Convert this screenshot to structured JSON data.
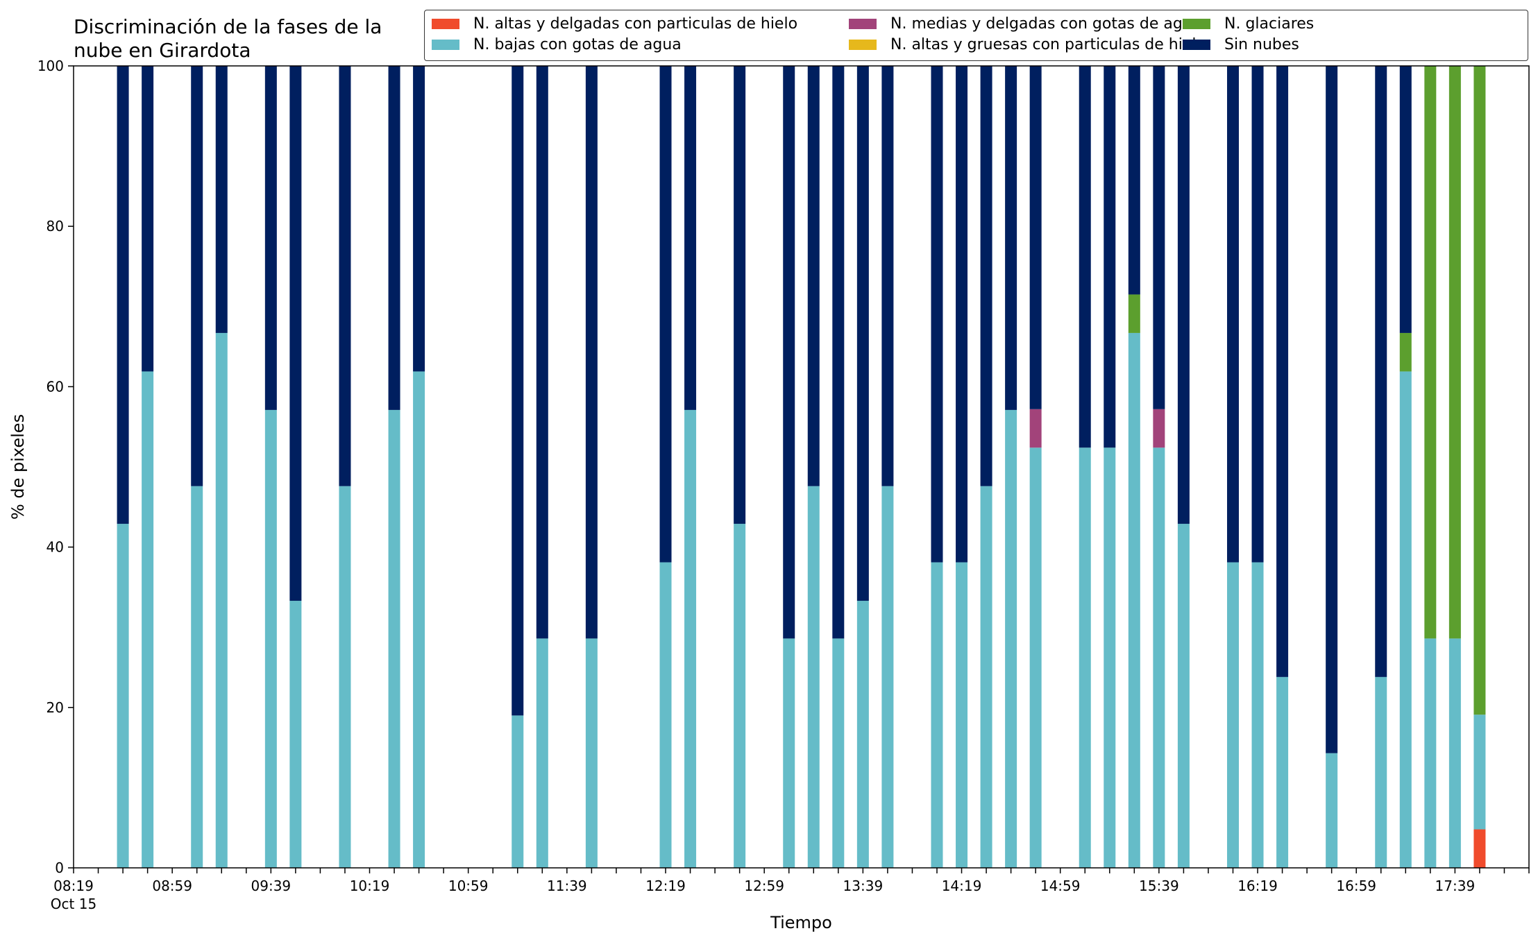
{
  "chart_data": {
    "type": "bar",
    "stacked": true,
    "title": "Discriminación de la fases de la\nnube en Girardota",
    "xlabel": "Tiempo",
    "ylabel": "% de pixeles",
    "ylim": [
      0,
      100
    ],
    "yticks": [
      "0",
      "20",
      "40",
      "60",
      "80",
      "100"
    ],
    "xlim": [
      "08:19",
      "18:09"
    ],
    "xtick_step_min": 10,
    "xtick_labels": [
      {
        "time": "08:19",
        "label": "08:19",
        "sub": "Oct 15"
      },
      {
        "time": "08:59",
        "label": "08:59"
      },
      {
        "time": "09:39",
        "label": "09:39"
      },
      {
        "time": "10:19",
        "label": "10:19"
      },
      {
        "time": "10:59",
        "label": "10:59"
      },
      {
        "time": "11:39",
        "label": "11:39"
      },
      {
        "time": "12:19",
        "label": "12:19"
      },
      {
        "time": "12:59",
        "label": "12:59"
      },
      {
        "time": "13:39",
        "label": "13:39"
      },
      {
        "time": "14:19",
        "label": "14:19"
      },
      {
        "time": "14:59",
        "label": "14:59"
      },
      {
        "time": "15:39",
        "label": "15:39"
      },
      {
        "time": "16:19",
        "label": "16:19"
      },
      {
        "time": "16:59",
        "label": "16:59"
      },
      {
        "time": "17:39",
        "label": "17:39"
      }
    ],
    "grid": false,
    "legend_position": "top-right",
    "series": [
      {
        "name": "N. altas y delgadas con particulas de hielo",
        "color": "#f04b2c"
      },
      {
        "name": "N. bajas con gotas de agua",
        "color": "#65bcc8"
      },
      {
        "name": "N. medias y delgadas con gotas de agua",
        "color": "#a2437a"
      },
      {
        "name": "N. altas y gruesas con particulas de hielo",
        "color": "#e6b81c"
      },
      {
        "name": "N. glaciares",
        "color": "#5c9f2e"
      },
      {
        "name": "Sin nubes",
        "color": "#001f5f"
      }
    ],
    "stack_order": [
      "N. altas y delgadas con particulas de hielo",
      "N. altas y gruesas con particulas de hielo",
      "N. bajas con gotas de agua",
      "N. medias y delgadas con gotas de agua",
      "N. glaciares",
      "Sin nubes"
    ],
    "bars": [
      {
        "time": "08:39",
        "N. bajas con gotas de agua": 42.9,
        "Sin nubes": 57.1
      },
      {
        "time": "08:49",
        "N. bajas con gotas de agua": 61.9,
        "Sin nubes": 38.1
      },
      {
        "time": "09:09",
        "N. bajas con gotas de agua": 47.6,
        "Sin nubes": 52.4
      },
      {
        "time": "09:19",
        "N. bajas con gotas de agua": 66.7,
        "Sin nubes": 33.3
      },
      {
        "time": "09:39",
        "N. bajas con gotas de agua": 57.1,
        "Sin nubes": 42.9
      },
      {
        "time": "09:49",
        "N. bajas con gotas de agua": 33.3,
        "Sin nubes": 66.7
      },
      {
        "time": "10:09",
        "N. bajas con gotas de agua": 47.6,
        "Sin nubes": 52.4
      },
      {
        "time": "10:29",
        "N. bajas con gotas de agua": 57.1,
        "Sin nubes": 42.9
      },
      {
        "time": "10:39",
        "N. bajas con gotas de agua": 61.9,
        "Sin nubes": 38.1
      },
      {
        "time": "11:19",
        "N. bajas con gotas de agua": 19.0,
        "Sin nubes": 81.0
      },
      {
        "time": "11:29",
        "N. bajas con gotas de agua": 28.6,
        "Sin nubes": 71.4
      },
      {
        "time": "11:49",
        "N. bajas con gotas de agua": 28.6,
        "Sin nubes": 71.4
      },
      {
        "time": "12:19",
        "N. bajas con gotas de agua": 38.1,
        "Sin nubes": 61.9
      },
      {
        "time": "12:29",
        "N. bajas con gotas de agua": 57.1,
        "Sin nubes": 42.9
      },
      {
        "time": "12:49",
        "N. bajas con gotas de agua": 42.9,
        "Sin nubes": 57.1
      },
      {
        "time": "13:09",
        "N. bajas con gotas de agua": 28.6,
        "Sin nubes": 71.4
      },
      {
        "time": "13:19",
        "N. bajas con gotas de agua": 47.6,
        "Sin nubes": 52.4
      },
      {
        "time": "13:29",
        "N. bajas con gotas de agua": 28.6,
        "Sin nubes": 71.4
      },
      {
        "time": "13:39",
        "N. bajas con gotas de agua": 33.3,
        "Sin nubes": 66.7
      },
      {
        "time": "13:49",
        "N. bajas con gotas de agua": 47.6,
        "Sin nubes": 52.4
      },
      {
        "time": "14:09",
        "N. bajas con gotas de agua": 38.1,
        "Sin nubes": 61.9
      },
      {
        "time": "14:19",
        "N. bajas con gotas de agua": 38.1,
        "Sin nubes": 61.9
      },
      {
        "time": "14:29",
        "N. bajas con gotas de agua": 47.6,
        "Sin nubes": 52.4
      },
      {
        "time": "14:39",
        "N. bajas con gotas de agua": 57.1,
        "Sin nubes": 42.9
      },
      {
        "time": "14:49",
        "N. bajas con gotas de agua": 52.4,
        "N. medias y delgadas con gotas de agua": 4.8,
        "Sin nubes": 42.8
      },
      {
        "time": "15:09",
        "N. bajas con gotas de agua": 52.4,
        "Sin nubes": 47.6
      },
      {
        "time": "15:19",
        "N. bajas con gotas de agua": 52.4,
        "Sin nubes": 47.6
      },
      {
        "time": "15:29",
        "N. bajas con gotas de agua": 66.7,
        "N. glaciares": 4.8,
        "Sin nubes": 28.5
      },
      {
        "time": "15:39",
        "N. bajas con gotas de agua": 52.4,
        "N. medias y delgadas con gotas de agua": 4.8,
        "Sin nubes": 42.8
      },
      {
        "time": "15:49",
        "N. bajas con gotas de agua": 42.9,
        "Sin nubes": 57.1
      },
      {
        "time": "16:09",
        "N. bajas con gotas de agua": 38.1,
        "Sin nubes": 61.9
      },
      {
        "time": "16:19",
        "N. bajas con gotas de agua": 38.1,
        "Sin nubes": 61.9
      },
      {
        "time": "16:29",
        "N. bajas con gotas de agua": 23.8,
        "Sin nubes": 76.2
      },
      {
        "time": "16:49",
        "N. bajas con gotas de agua": 14.3,
        "Sin nubes": 85.7
      },
      {
        "time": "17:09",
        "N. bajas con gotas de agua": 23.8,
        "Sin nubes": 76.2
      },
      {
        "time": "17:19",
        "N. bajas con gotas de agua": 61.9,
        "N. glaciares": 4.8,
        "Sin nubes": 33.3
      },
      {
        "time": "17:29",
        "N. bajas con gotas de agua": 28.6,
        "N. glaciares": 71.4
      },
      {
        "time": "17:39",
        "N. bajas con gotas de agua": 28.6,
        "N. glaciares": 71.4
      },
      {
        "time": "17:49",
        "N. altas y delgadas con particulas de hielo": 4.8,
        "N. bajas con gotas de agua": 14.3,
        "N. glaciares": 80.9
      }
    ]
  }
}
